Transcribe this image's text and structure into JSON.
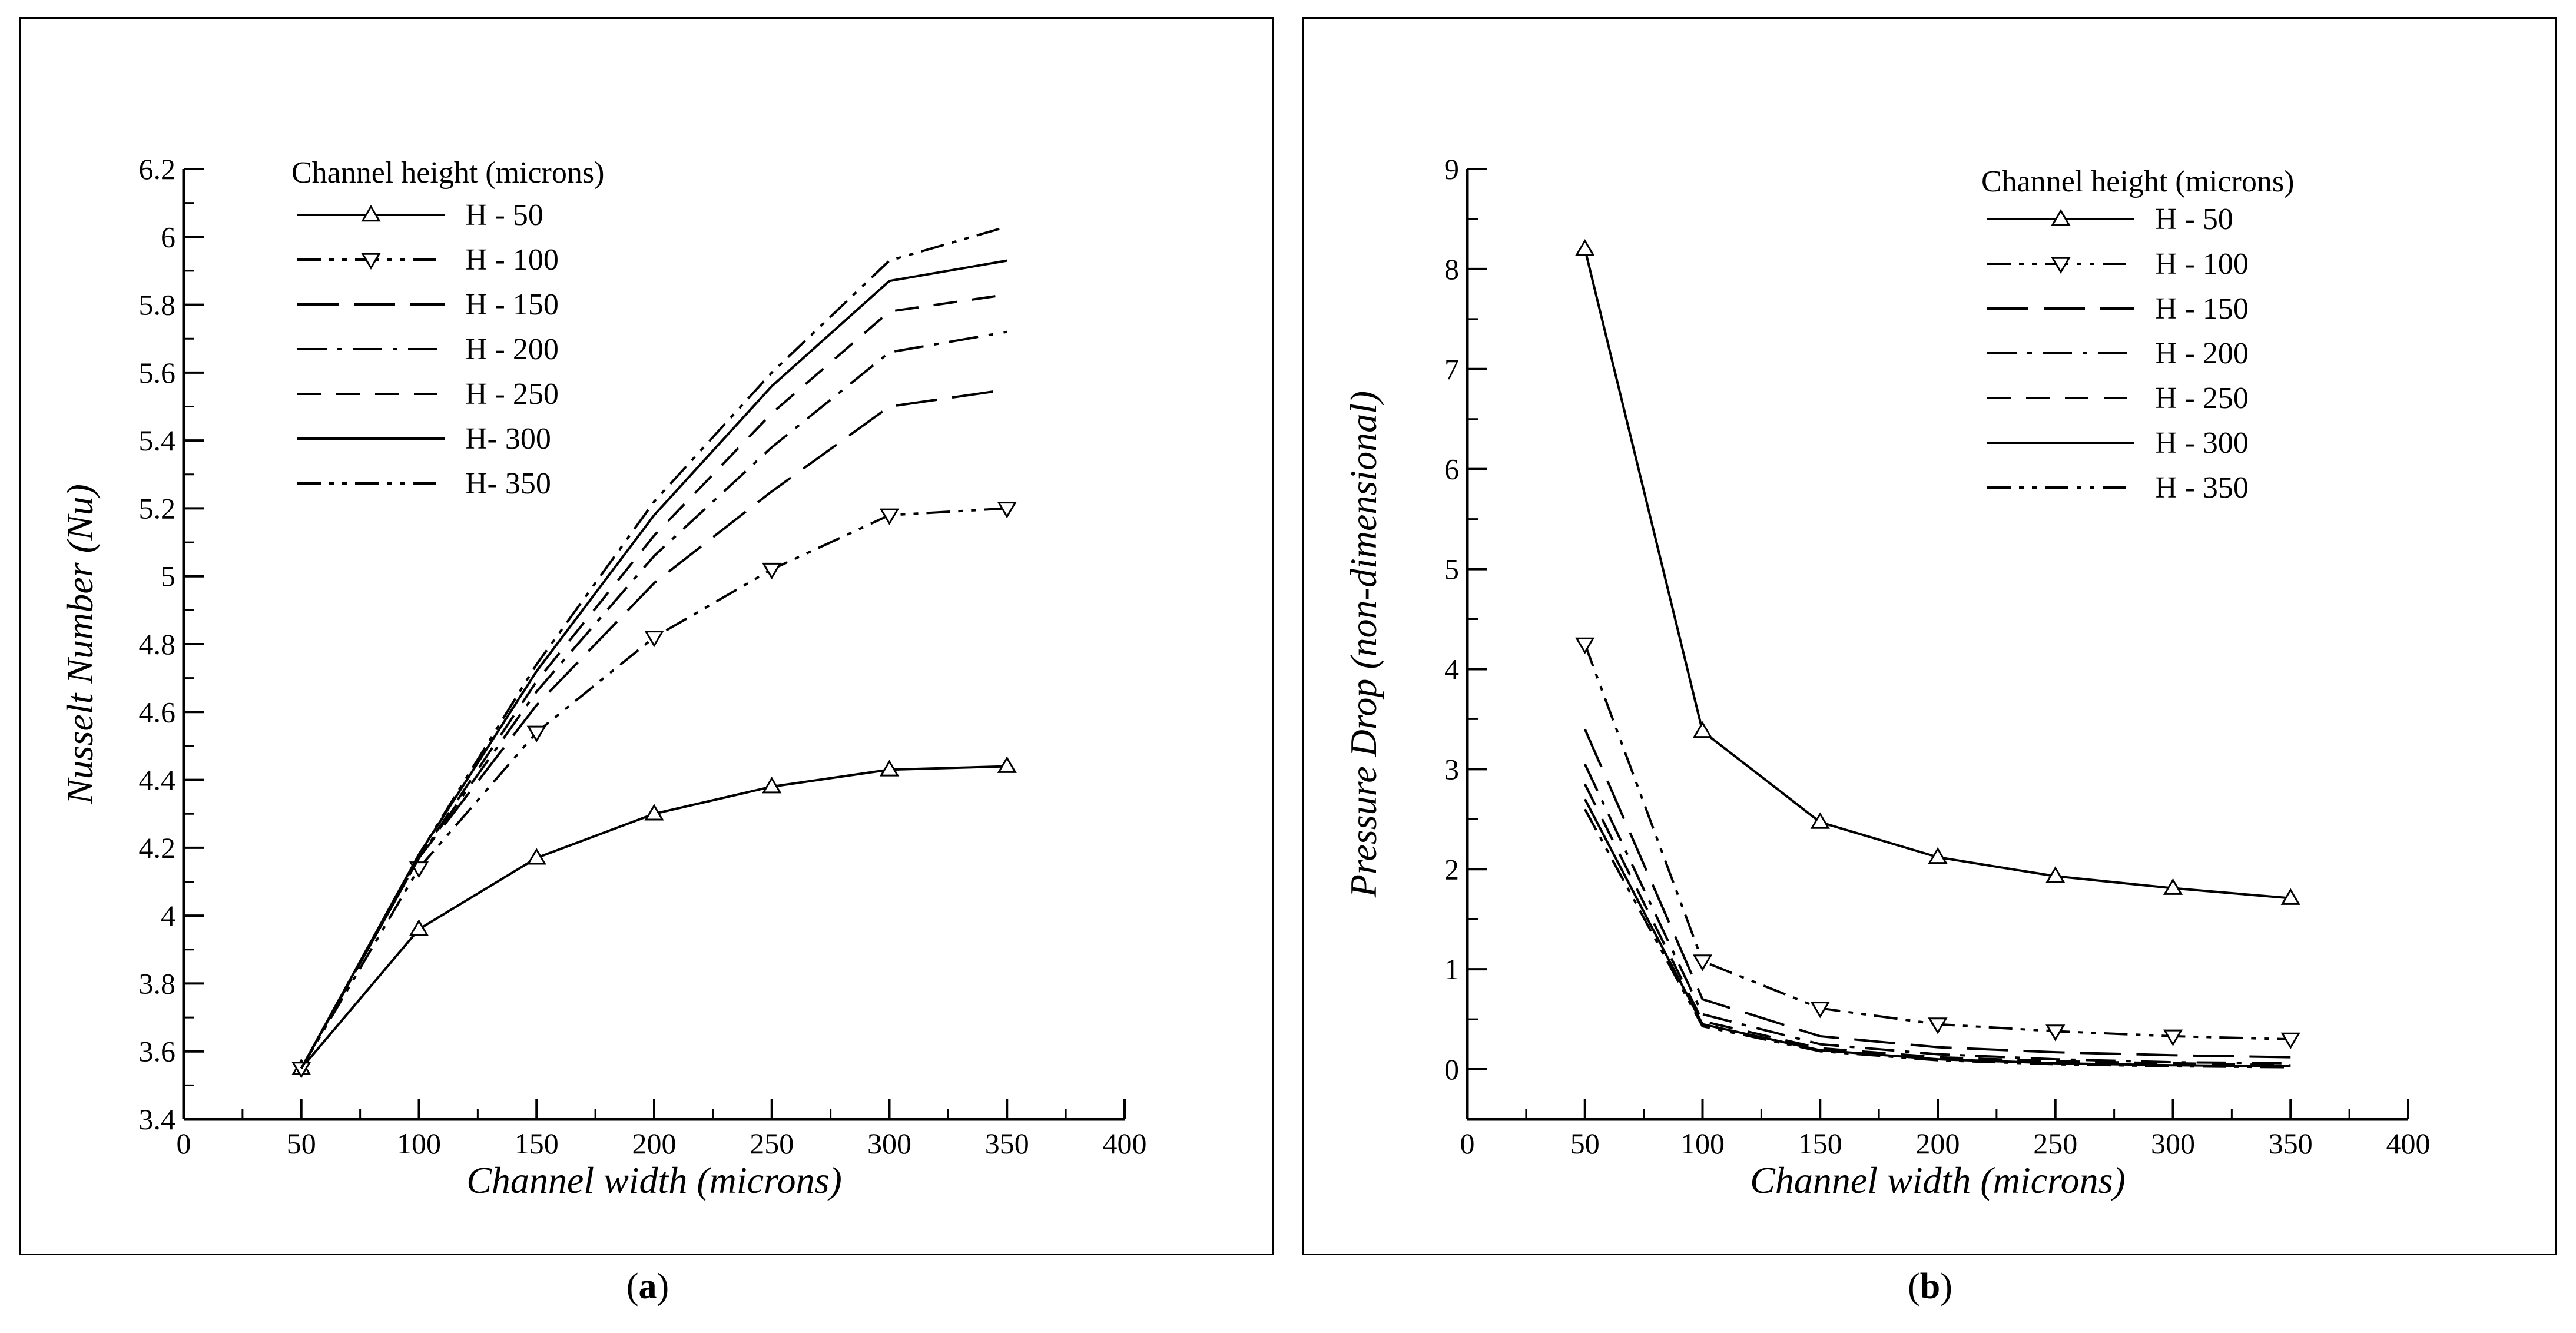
{
  "captions": {
    "a_letter": "a",
    "b_letter": "b"
  },
  "chart_data": [
    {
      "panel": "a",
      "type": "line",
      "title": "",
      "xlabel": "Channel width (microns)",
      "ylabel": "Nusselt Number (Nu)",
      "xlim": [
        0,
        400
      ],
      "ylim": [
        3.4,
        6.2
      ],
      "xticks": [
        "0",
        "50",
        "100",
        "150",
        "200",
        "250",
        "300",
        "350",
        "400"
      ],
      "yticks": [
        "3.4",
        "3.6",
        "3.8",
        "4",
        "4.2",
        "4.4",
        "4.6",
        "4.8",
        "5",
        "5.2",
        "5.4",
        "5.6",
        "5.8",
        "6",
        "6.2"
      ],
      "x": [
        50,
        100,
        150,
        200,
        250,
        300,
        350
      ],
      "legend_title": "Channel height (microns)",
      "legend_position": "top-left",
      "grid": false,
      "series": [
        {
          "name": "H - 50",
          "values": [
            3.55,
            3.96,
            4.17,
            4.3,
            4.38,
            4.43,
            4.44
          ],
          "dash": "solid",
          "marker": "triangle-up"
        },
        {
          "name": "H - 100",
          "values": [
            3.55,
            4.14,
            4.54,
            4.82,
            5.02,
            5.18,
            5.2
          ],
          "dash": "dashdotdot",
          "marker": "triangle-down"
        },
        {
          "name": "H - 150",
          "values": [
            3.55,
            4.17,
            4.62,
            4.98,
            5.25,
            5.5,
            5.55
          ],
          "dash": "longdash",
          "marker": "none"
        },
        {
          "name": "H - 200",
          "values": [
            3.55,
            4.17,
            4.66,
            5.06,
            5.38,
            5.66,
            5.72
          ],
          "dash": "dashdot",
          "marker": "none"
        },
        {
          "name": "H - 250",
          "values": [
            3.55,
            4.17,
            4.69,
            5.12,
            5.48,
            5.78,
            5.83
          ],
          "dash": "dash",
          "marker": "none"
        },
        {
          "name": "H- 300",
          "values": [
            3.55,
            4.18,
            4.72,
            5.18,
            5.56,
            5.87,
            5.93
          ],
          "dash": "solid",
          "marker": "none"
        },
        {
          "name": "H- 350",
          "values": [
            3.55,
            4.18,
            4.74,
            5.22,
            5.6,
            5.93,
            6.03
          ],
          "dash": "dashdotdot",
          "marker": "none"
        }
      ]
    },
    {
      "panel": "b",
      "type": "line",
      "title": "",
      "xlabel": "Channel width (microns)",
      "ylabel": "Pressure Drop (non-dimensional)",
      "xlim": [
        0,
        400
      ],
      "ylim": [
        -0.5,
        9
      ],
      "xticks": [
        "0",
        "50",
        "100",
        "150",
        "200",
        "250",
        "300",
        "350",
        "400"
      ],
      "yticks": [
        "0",
        "1",
        "2",
        "3",
        "4",
        "5",
        "6",
        "7",
        "8",
        "9"
      ],
      "x": [
        50,
        100,
        150,
        200,
        250,
        300,
        350
      ],
      "legend_title": "Channel height (microns)",
      "legend_position": "top-right",
      "grid": false,
      "series": [
        {
          "name": "H - 50",
          "values": [
            8.2,
            3.38,
            2.47,
            2.12,
            1.93,
            1.81,
            1.71
          ],
          "dash": "solid",
          "marker": "triangle-up"
        },
        {
          "name": "H - 100",
          "values": [
            4.25,
            1.08,
            0.61,
            0.45,
            0.38,
            0.33,
            0.3
          ],
          "dash": "dashdotdot",
          "marker": "triangle-down"
        },
        {
          "name": "H - 150",
          "values": [
            3.4,
            0.7,
            0.33,
            0.22,
            0.17,
            0.14,
            0.12
          ],
          "dash": "longdash",
          "marker": "none"
        },
        {
          "name": "H - 200",
          "values": [
            3.05,
            0.55,
            0.25,
            0.15,
            0.1,
            0.07,
            0.06
          ],
          "dash": "dashdot",
          "marker": "none"
        },
        {
          "name": "H - 250",
          "values": [
            2.85,
            0.48,
            0.21,
            0.12,
            0.08,
            0.06,
            0.04
          ],
          "dash": "dash",
          "marker": "none"
        },
        {
          "name": "H - 300",
          "values": [
            2.7,
            0.45,
            0.19,
            0.1,
            0.06,
            0.04,
            0.03
          ],
          "dash": "solid",
          "marker": "none"
        },
        {
          "name": "H - 350",
          "values": [
            2.6,
            0.43,
            0.18,
            0.09,
            0.05,
            0.03,
            0.02
          ],
          "dash": "dashdotdot",
          "marker": "none"
        }
      ]
    }
  ]
}
